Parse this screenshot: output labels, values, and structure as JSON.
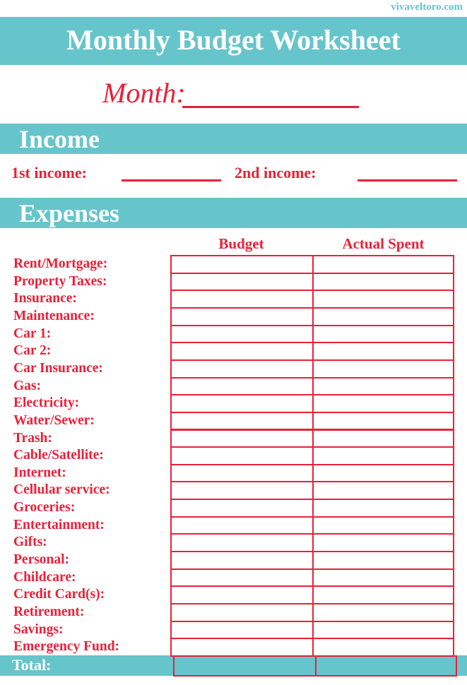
{
  "site": "vivaveltoro.com",
  "title": "Monthly Budget Worksheet",
  "month_label": "Month:",
  "income": {
    "heading": "Income",
    "first_label": "1st income:",
    "second_label": "2nd income:"
  },
  "expenses": {
    "heading": "Expenses",
    "columns": [
      "Budget",
      "Actual Spent"
    ],
    "items": [
      "Rent/Mortgage:",
      "Property Taxes:",
      "Insurance:",
      "Maintenance:",
      "Car 1:",
      "Car 2:",
      "Car Insurance:",
      "Gas:",
      "Electricity:",
      "Water/Sewer:",
      "Trash:",
      "Cable/Satellite:",
      "Internet:",
      "Cellular service:",
      "Groceries:",
      "Entertainment:",
      "Gifts:",
      "Personal:",
      "Childcare:",
      "Credit Card(s):",
      "Retirement:",
      "Savings:",
      "Emergency Fund:"
    ],
    "total_label": "Total:"
  },
  "colors": {
    "teal": "#66c5cb",
    "red": "#e8213a"
  }
}
